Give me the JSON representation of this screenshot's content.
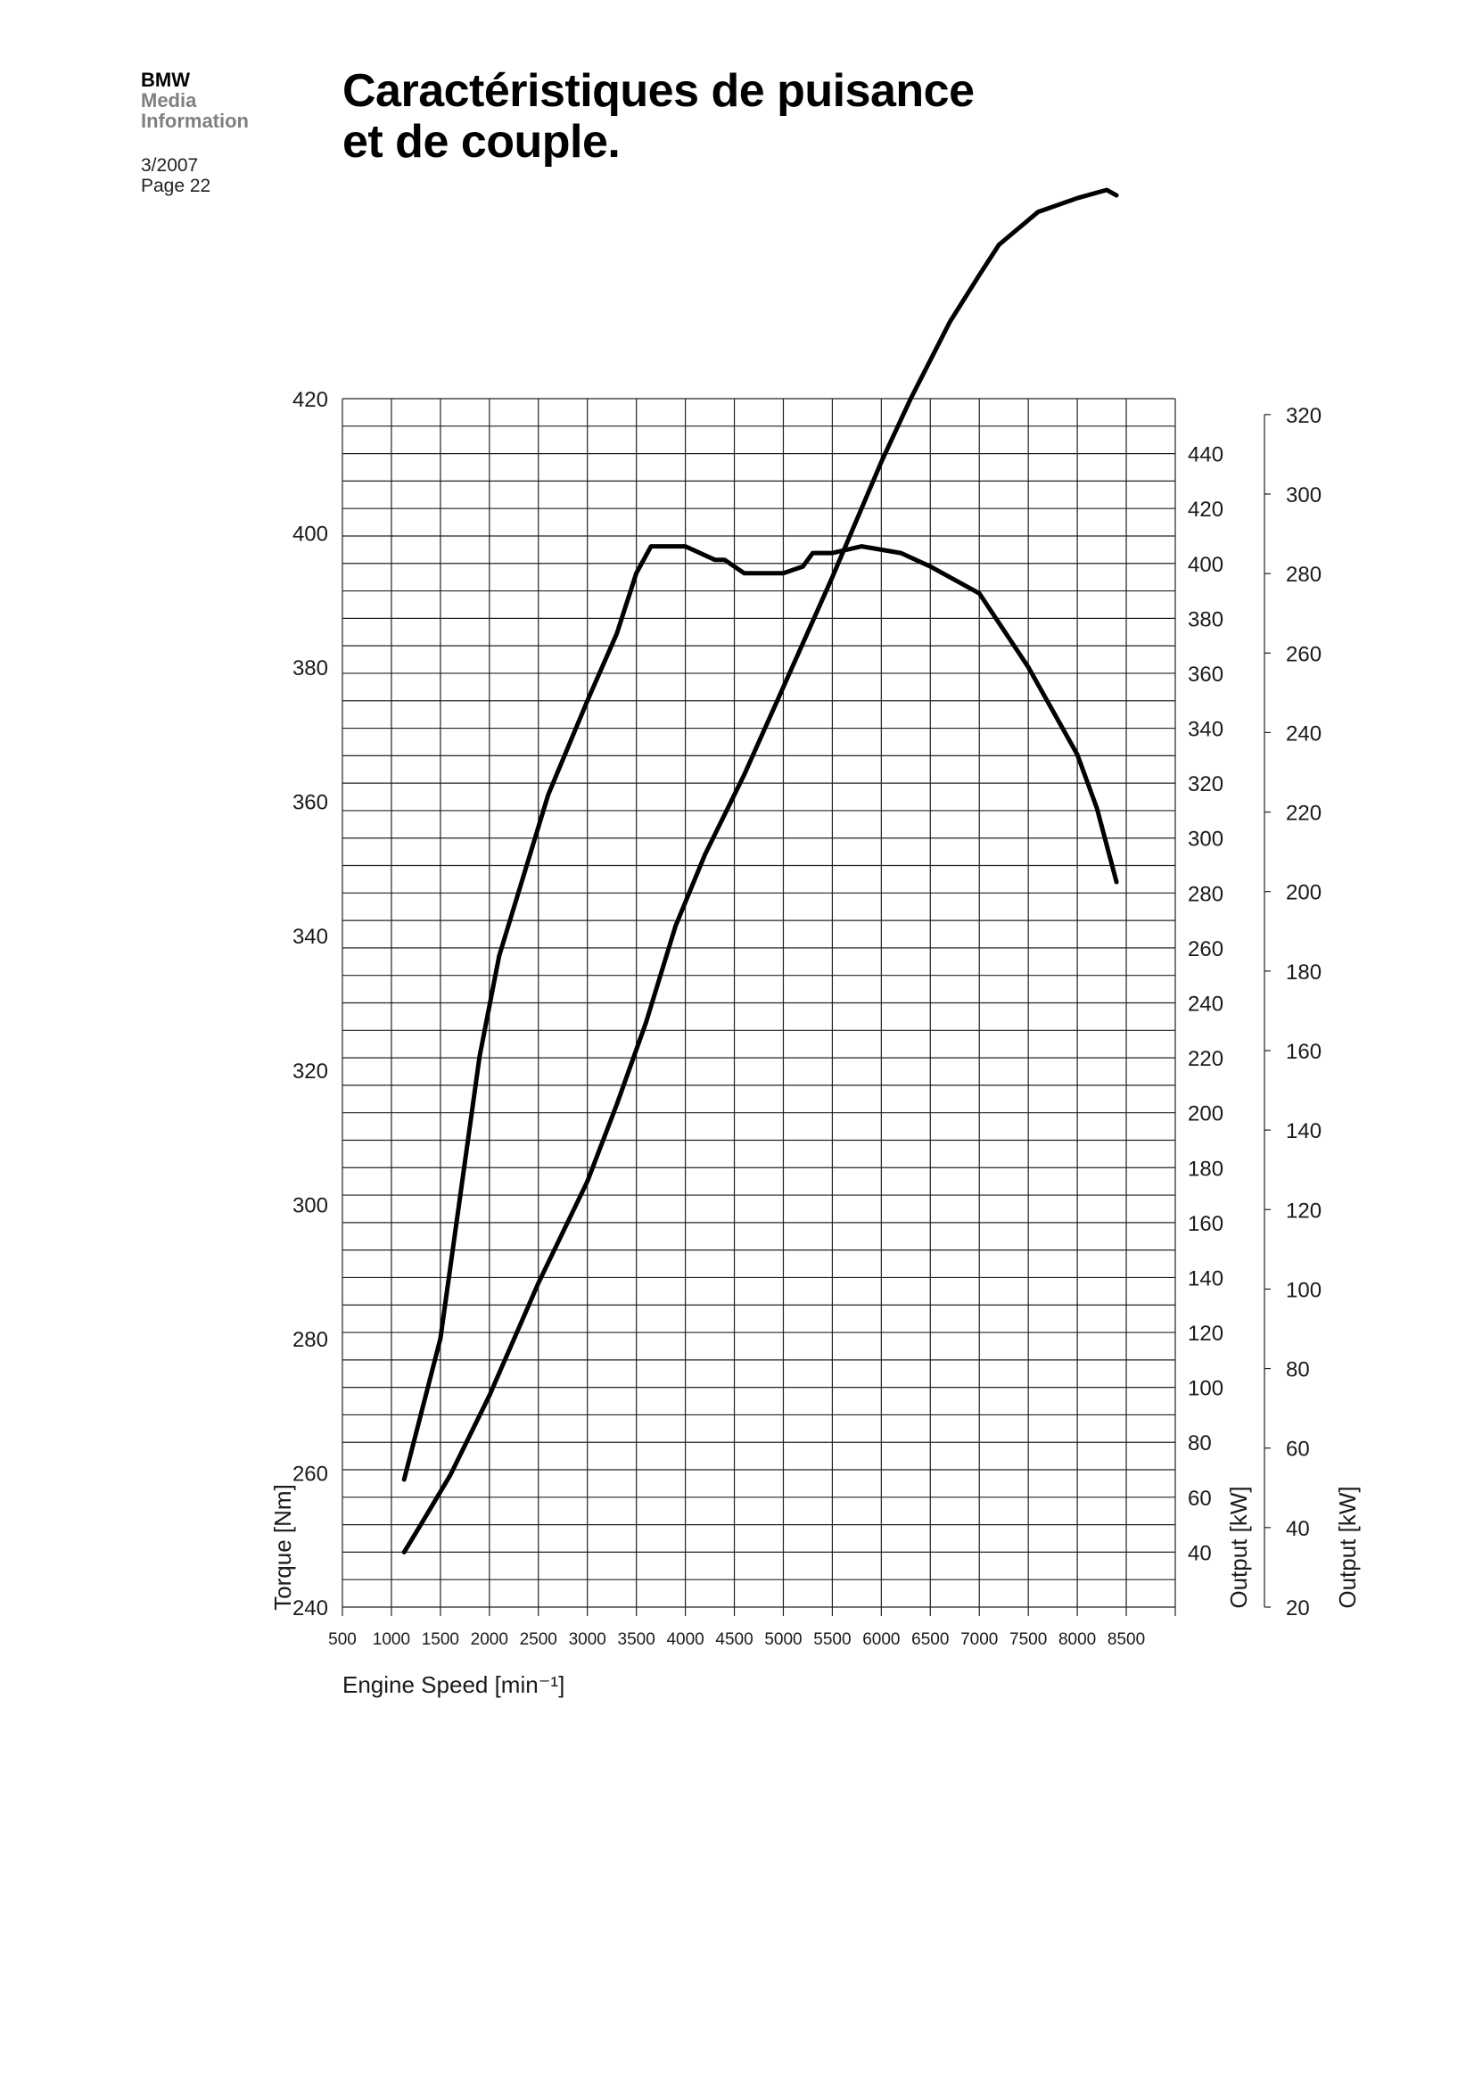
{
  "header": {
    "brand": "BMW",
    "brand_line2": "Media",
    "brand_line3": "Information",
    "issue": "3/2007",
    "page": "Page 22"
  },
  "title": {
    "line1": "Caractéristiques de puisance",
    "line2": "et de couple."
  },
  "chart_data": {
    "type": "line",
    "title": "",
    "xlabel": "Engine Speed [min⁻¹]",
    "x_ticks": [
      500,
      1000,
      1500,
      2000,
      2500,
      3000,
      3500,
      4000,
      4500,
      5000,
      5500,
      6000,
      6500,
      7000,
      7500,
      8000,
      8500
    ],
    "xlim": [
      500,
      9000
    ],
    "grid": true,
    "axes": {
      "torque": {
        "label": "Torque [Nm]",
        "ticks": [
          240,
          260,
          280,
          300,
          320,
          340,
          360,
          380,
          400,
          420
        ],
        "ylim": [
          240,
          420
        ]
      },
      "output_right": {
        "label": "Output [kW]",
        "ticks": [
          40,
          60,
          80,
          100,
          120,
          140,
          160,
          180,
          200,
          220,
          240,
          260,
          280,
          300,
          320,
          340,
          360,
          380,
          400,
          420,
          440
        ],
        "ylim": [
          20,
          460
        ]
      },
      "output_far": {
        "label": "Output [kW]",
        "ticks": [
          20,
          40,
          60,
          80,
          100,
          120,
          140,
          160,
          180,
          200,
          220,
          240,
          260,
          280,
          300,
          320
        ],
        "ylim": [
          20,
          324
        ]
      }
    },
    "series": [
      {
        "axis": "torque",
        "x": [
          1130,
          1500,
          1900,
          2100,
          2600,
          3000,
          3300,
          3500,
          3650,
          3800,
          4000,
          4300,
          4400,
          4600,
          5000,
          5200,
          5300,
          5500,
          5800,
          6200,
          6500,
          7000,
          7500,
          8000,
          8200,
          8400
        ],
        "y": [
          259,
          280,
          322,
          337,
          361,
          375,
          385,
          394,
          398,
          398,
          398,
          396,
          396,
          394,
          394,
          395,
          397,
          397,
          398,
          397,
          395,
          391,
          380,
          367,
          359,
          348
        ]
      },
      {
        "axis": "output_right",
        "x": [
          1130,
          1300,
          1600,
          2000,
          2500,
          3000,
          3300,
          3600,
          3900,
          4200,
          4600,
          5000,
          5500,
          6000,
          6300,
          6700,
          7000,
          7200,
          7600,
          8000,
          8200,
          8300,
          8400
        ],
        "y": [
          40,
          50,
          68,
          97,
          138,
          175,
          203,
          233,
          268,
          294,
          323,
          355,
          395,
          437,
          460,
          488,
          505,
          516,
          528,
          533,
          535,
          536,
          534
        ]
      }
    ]
  }
}
